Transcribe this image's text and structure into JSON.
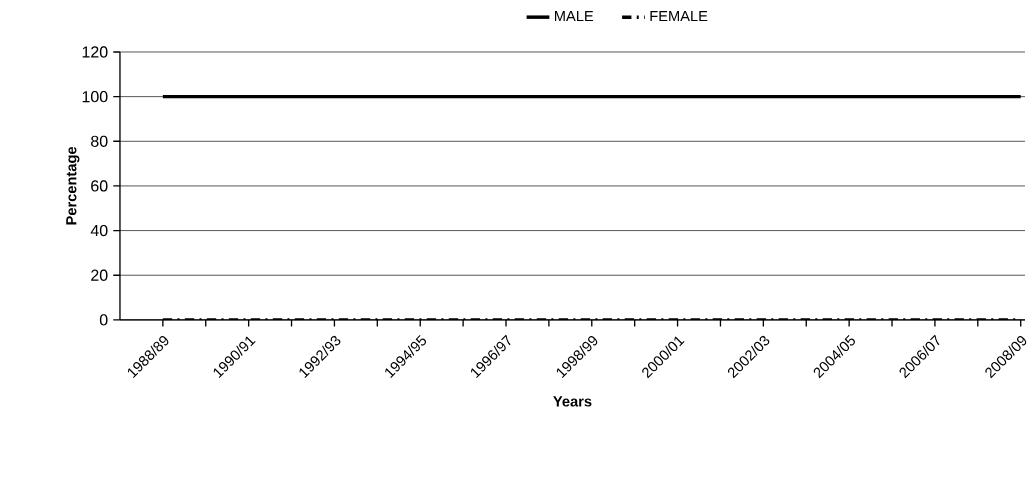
{
  "chart_data": {
    "type": "line",
    "xlabel": "Years",
    "ylabel": "Percentage",
    "categories": [
      "1988/89",
      null,
      "1990/91",
      null,
      "1992/93",
      null,
      "1994/95",
      null,
      "1996/97",
      null,
      "1998/99",
      null,
      "2000/01",
      null,
      "2002/03",
      null,
      "2004/05",
      null,
      "2006/07",
      null,
      "2008/09"
    ],
    "series": [
      {
        "name": "MALE",
        "color": "#000000",
        "line_style": "solid",
        "values": [
          100,
          100,
          100,
          100,
          100,
          100,
          100,
          100,
          100,
          100,
          100,
          100,
          100,
          100,
          100,
          100,
          100,
          100,
          100,
          100,
          100
        ]
      },
      {
        "name": "FEMALE",
        "color": "#000000",
        "line_style": "dashdot",
        "values": [
          0,
          0,
          0,
          0,
          0,
          0,
          0,
          0,
          0,
          0,
          0,
          0,
          0,
          0,
          0,
          0,
          0,
          0,
          0,
          0,
          0
        ]
      }
    ],
    "ylim": [
      0,
      120
    ],
    "yticks": [
      0,
      20,
      40,
      60,
      80,
      100,
      120
    ],
    "grid": "y",
    "legend": "top",
    "marker": "none"
  }
}
